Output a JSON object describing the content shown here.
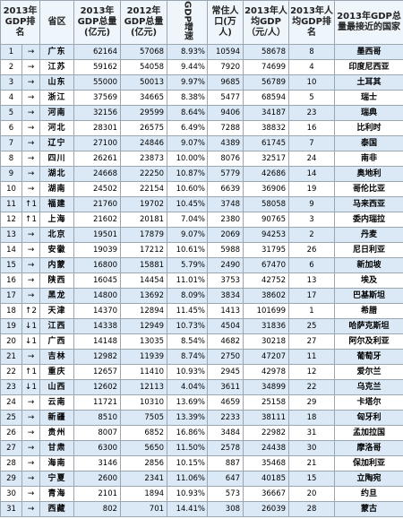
{
  "headers": {
    "rank": "2013年GDP排名",
    "change": "",
    "province": "省区",
    "gdp2013": "2013年GDP总量(亿元)",
    "gdp2012": "2012年GDP总量(亿元)",
    "growth": "GDP增速",
    "pop": "常住人口(万人)",
    "percap": "2013年人均GDP（元/人）",
    "percap_rank": "2013年人均GDP排名",
    "country": "2013年GDP总量最接近的国家"
  },
  "rows": [
    {
      "rank": "1",
      "chg": "→",
      "prov": "广东",
      "g13": "62164",
      "g12": "57068",
      "gr": "8.93%",
      "pop": "10594",
      "pc": "58678",
      "pr": "8",
      "cty": "墨西哥"
    },
    {
      "rank": "2",
      "chg": "→",
      "prov": "江苏",
      "g13": "59162",
      "g12": "54058",
      "gr": "9.44%",
      "pop": "7920",
      "pc": "74699",
      "pr": "4",
      "cty": "印度尼西亚"
    },
    {
      "rank": "3",
      "chg": "→",
      "prov": "山东",
      "g13": "55000",
      "g12": "50013",
      "gr": "9.97%",
      "pop": "9685",
      "pc": "56789",
      "pr": "10",
      "cty": "土耳其"
    },
    {
      "rank": "4",
      "chg": "→",
      "prov": "浙江",
      "g13": "37569",
      "g12": "34665",
      "gr": "8.38%",
      "pop": "5477",
      "pc": "68594",
      "pr": "5",
      "cty": "瑞士"
    },
    {
      "rank": "5",
      "chg": "→",
      "prov": "河南",
      "g13": "32156",
      "g12": "29599",
      "gr": "8.64%",
      "pop": "9406",
      "pc": "34187",
      "pr": "23",
      "cty": "瑞典"
    },
    {
      "rank": "6",
      "chg": "→",
      "prov": "河北",
      "g13": "28301",
      "g12": "26575",
      "gr": "6.49%",
      "pop": "7288",
      "pc": "38832",
      "pr": "16",
      "cty": "比利时"
    },
    {
      "rank": "7",
      "chg": "→",
      "prov": "辽宁",
      "g13": "27100",
      "g12": "24846",
      "gr": "9.07%",
      "pop": "4389",
      "pc": "61745",
      "pr": "7",
      "cty": "泰国"
    },
    {
      "rank": "8",
      "chg": "→",
      "prov": "四川",
      "g13": "26261",
      "g12": "23873",
      "gr": "10.00%",
      "pop": "8076",
      "pc": "32517",
      "pr": "24",
      "cty": "南非"
    },
    {
      "rank": "9",
      "chg": "→",
      "prov": "湖北",
      "g13": "24668",
      "g12": "22250",
      "gr": "10.87%",
      "pop": "5779",
      "pc": "42686",
      "pr": "14",
      "cty": "奥地利"
    },
    {
      "rank": "10",
      "chg": "→",
      "prov": "湖南",
      "g13": "24502",
      "g12": "22154",
      "gr": "10.60%",
      "pop": "6639",
      "pc": "36906",
      "pr": "19",
      "cty": "哥伦比亚"
    },
    {
      "rank": "11",
      "chg": "↑1",
      "prov": "福建",
      "g13": "21760",
      "g12": "19702",
      "gr": "10.45%",
      "pop": "3748",
      "pc": "58058",
      "pr": "9",
      "cty": "马来西亚"
    },
    {
      "rank": "12",
      "chg": "↑1",
      "prov": "上海",
      "g13": "21602",
      "g12": "20181",
      "gr": "7.04%",
      "pop": "2380",
      "pc": "90765",
      "pr": "3",
      "cty": "委内瑞拉"
    },
    {
      "rank": "13",
      "chg": "→",
      "prov": "北京",
      "g13": "19501",
      "g12": "17879",
      "gr": "9.07%",
      "pop": "2069",
      "pc": "94253",
      "pr": "2",
      "cty": "丹麦"
    },
    {
      "rank": "14",
      "chg": "→",
      "prov": "安徽",
      "g13": "19039",
      "g12": "17212",
      "gr": "10.61%",
      "pop": "5988",
      "pc": "31795",
      "pr": "26",
      "cty": "尼日利亚"
    },
    {
      "rank": "15",
      "chg": "→",
      "prov": "内蒙",
      "g13": "16800",
      "g12": "15881",
      "gr": "5.79%",
      "pop": "2490",
      "pc": "67470",
      "pr": "6",
      "cty": "新加坡"
    },
    {
      "rank": "16",
      "chg": "→",
      "prov": "陕西",
      "g13": "16045",
      "g12": "14454",
      "gr": "11.01%",
      "pop": "3753",
      "pc": "42752",
      "pr": "13",
      "cty": "埃及"
    },
    {
      "rank": "17",
      "chg": "→",
      "prov": "黑龙",
      "g13": "14800",
      "g12": "13692",
      "gr": "8.09%",
      "pop": "3834",
      "pc": "38602",
      "pr": "17",
      "cty": "巴基斯坦"
    },
    {
      "rank": "18",
      "chg": "↑2",
      "prov": "天津",
      "g13": "14370",
      "g12": "12894",
      "gr": "11.45%",
      "pop": "1413",
      "pc": "101699",
      "pr": "1",
      "cty": "希腊"
    },
    {
      "rank": "19",
      "chg": "↓1",
      "prov": "江西",
      "g13": "14338",
      "g12": "12949",
      "gr": "10.73%",
      "pop": "4504",
      "pc": "31836",
      "pr": "25",
      "cty": "哈萨克斯坦"
    },
    {
      "rank": "20",
      "chg": "↓1",
      "prov": "广西",
      "g13": "14148",
      "g12": "13035",
      "gr": "8.54%",
      "pop": "4682",
      "pc": "30218",
      "pr": "27",
      "cty": "阿尔及利亚"
    },
    {
      "rank": "21",
      "chg": "→",
      "prov": "吉林",
      "g13": "12982",
      "g12": "11939",
      "gr": "8.74%",
      "pop": "2750",
      "pc": "47207",
      "pr": "11",
      "cty": "葡萄牙"
    },
    {
      "rank": "22",
      "chg": "↑1",
      "prov": "重庆",
      "g13": "12657",
      "g12": "11410",
      "gr": "10.93%",
      "pop": "2945",
      "pc": "42978",
      "pr": "12",
      "cty": "爱尔兰"
    },
    {
      "rank": "23",
      "chg": "↓1",
      "prov": "山西",
      "g13": "12602",
      "g12": "12113",
      "gr": "4.04%",
      "pop": "3611",
      "pc": "34899",
      "pr": "22",
      "cty": "乌克兰"
    },
    {
      "rank": "24",
      "chg": "→",
      "prov": "云南",
      "g13": "11721",
      "g12": "10310",
      "gr": "13.69%",
      "pop": "4659",
      "pc": "25158",
      "pr": "29",
      "cty": "卡塔尔"
    },
    {
      "rank": "25",
      "chg": "→",
      "prov": "新疆",
      "g13": "8510",
      "g12": "7505",
      "gr": "13.39%",
      "pop": "2233",
      "pc": "38111",
      "pr": "18",
      "cty": "匈牙利"
    },
    {
      "rank": "26",
      "chg": "→",
      "prov": "贵州",
      "g13": "8007",
      "g12": "6852",
      "gr": "16.86%",
      "pop": "3484",
      "pc": "22982",
      "pr": "31",
      "cty": "孟加拉国"
    },
    {
      "rank": "27",
      "chg": "→",
      "prov": "甘肃",
      "g13": "6300",
      "g12": "5650",
      "gr": "11.50%",
      "pop": "2578",
      "pc": "24438",
      "pr": "30",
      "cty": "摩洛哥"
    },
    {
      "rank": "28",
      "chg": "→",
      "prov": "海南",
      "g13": "3146",
      "g12": "2856",
      "gr": "10.15%",
      "pop": "887",
      "pc": "35468",
      "pr": "21",
      "cty": "保加利亚"
    },
    {
      "rank": "29",
      "chg": "→",
      "prov": "宁夏",
      "g13": "2600",
      "g12": "2341",
      "gr": "11.06%",
      "pop": "647",
      "pc": "40185",
      "pr": "15",
      "cty": "立陶宛"
    },
    {
      "rank": "30",
      "chg": "→",
      "prov": "青海",
      "g13": "2101",
      "g12": "1894",
      "gr": "10.93%",
      "pop": "573",
      "pc": "36667",
      "pr": "20",
      "cty": "约旦"
    },
    {
      "rank": "31",
      "chg": "→",
      "prov": "西藏",
      "g13": "802",
      "g12": "701",
      "gr": "14.41%",
      "pop": "308",
      "pc": "26039",
      "pr": "28",
      "cty": "蒙古"
    }
  ]
}
